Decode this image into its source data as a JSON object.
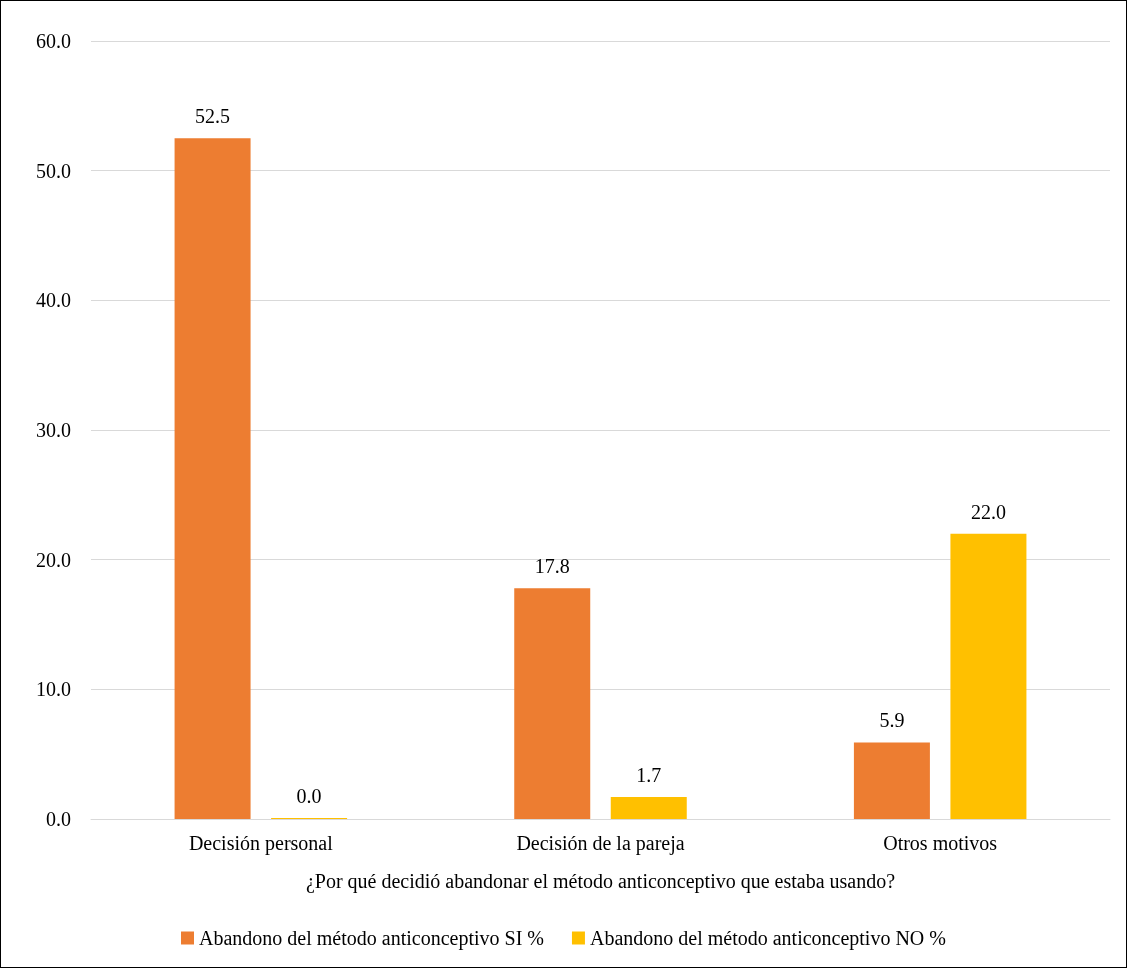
{
  "chart_data": {
    "type": "bar",
    "xlabel": "¿Por qué decidió abandonar el método anticonceptivo que estaba usando?",
    "categories": [
      "Decisión personal",
      "Decisión de la pareja",
      "Otros motivos"
    ],
    "series": [
      {
        "name": "Abandono del método anticonceptivo SI %",
        "color": "#ed7d31",
        "values": [
          52.5,
          17.8,
          5.9
        ],
        "value_labels": [
          "52.5",
          "17.8",
          "5.9"
        ]
      },
      {
        "name": "Abandono del método anticonceptivo NO %",
        "color": "#ffc000",
        "values": [
          0,
          1.7,
          22.0
        ],
        "value_labels": [
          "0.0",
          "1.7",
          "22.0"
        ]
      }
    ],
    "ylim": [
      0,
      60
    ],
    "yticks": [
      {
        "value": 0,
        "label": "0.0"
      },
      {
        "value": 10,
        "label": "10.0"
      },
      {
        "value": 20,
        "label": "20.0"
      },
      {
        "value": 30,
        "label": "30.0"
      },
      {
        "value": 40,
        "label": "40.0"
      },
      {
        "value": 50,
        "label": "50.0"
      },
      {
        "value": 60,
        "label": "60.0"
      }
    ],
    "grid": "y",
    "legend": "bottom"
  }
}
